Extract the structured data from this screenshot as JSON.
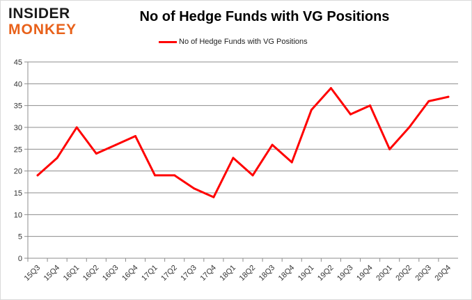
{
  "logo": {
    "line1": "INSIDER",
    "line2": "MONKEY"
  },
  "colors": {
    "series": "#ff0000",
    "grid": "#8c8c8c",
    "logo_dark": "#1a1a1a",
    "logo_orange": "#e8611a"
  },
  "chart_data": {
    "type": "line",
    "title": "No of Hedge Funds with VG Positions",
    "xlabel": "",
    "ylabel": "",
    "ylim": [
      0,
      45
    ],
    "yticks": [
      0,
      5,
      10,
      15,
      20,
      25,
      30,
      35,
      40,
      45
    ],
    "grid": "horizontal",
    "legend": "top-center",
    "categories": [
      "15Q3",
      "15Q4",
      "16Q1",
      "16Q2",
      "16Q3",
      "16Q4",
      "17Q1",
      "17Q2",
      "17Q3",
      "17Q4",
      "18Q1",
      "18Q2",
      "18Q3",
      "18Q4",
      "19Q1",
      "19Q2",
      "19Q3",
      "19Q4",
      "20Q1",
      "20Q2",
      "20Q3",
      "20Q4"
    ],
    "series": [
      {
        "name": "No of Hedge Funds with VG Positions",
        "values": [
          19,
          23,
          30,
          24,
          26,
          28,
          19,
          19,
          16,
          14,
          23,
          19,
          26,
          22,
          34,
          39,
          33,
          35,
          25,
          30,
          36,
          37
        ]
      }
    ]
  }
}
